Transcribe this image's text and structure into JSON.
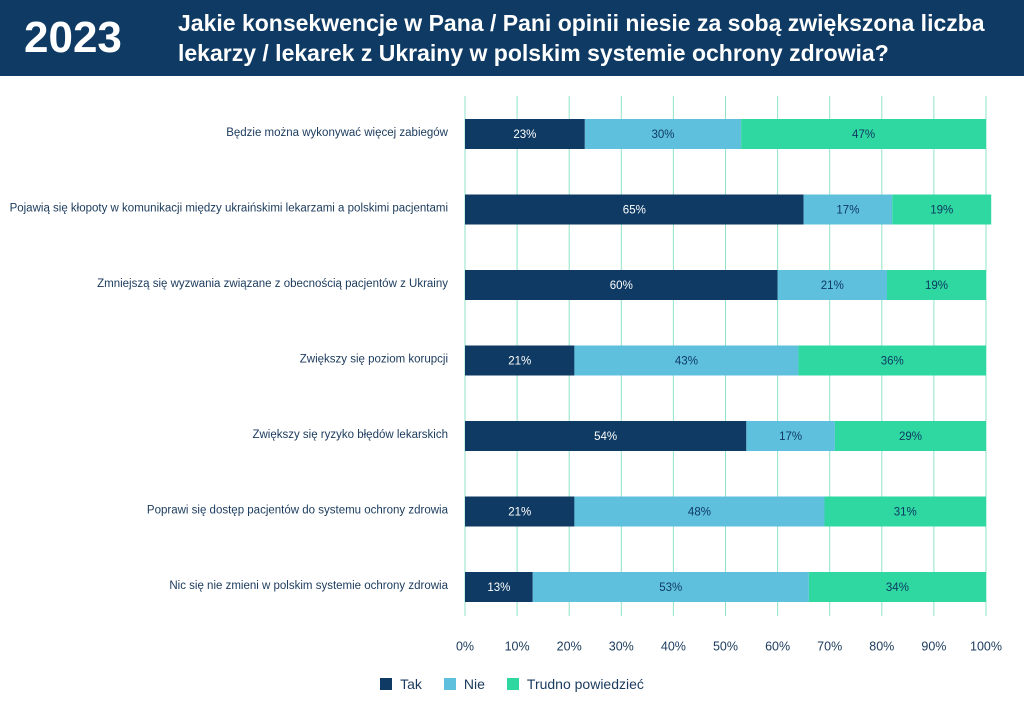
{
  "header": {
    "year": "2023",
    "title": "Jakie konsekwencje w Pana / Pani opinii niesie za sobą zwiększona liczba lekarzy / lekarek z Ukrainy w polskim systemie ochrony zdrowia?"
  },
  "colors": {
    "tak": "#0e3a63",
    "nie": "#5fc0de",
    "trudno": "#2ed8a0",
    "grid": "#8fe3c8"
  },
  "chart_data": {
    "type": "bar",
    "orientation": "horizontal",
    "stacked": true,
    "categories": [
      "Będzie można wykonywać więcej zabiegów",
      "Pojawią się kłopoty w komunikacji między ukraińskimi lekarzami a polskimi pacjentami",
      "Zmniejszą się wyzwania związane z obecnością pacjentów z Ukrainy",
      "Zwiększy się poziom korupcji",
      "Zwiększy się ryzyko błędów lekarskich",
      "Poprawi się dostęp pacjentów do systemu ochrony zdrowia",
      "Nic się nie zmieni w polskim systemie ochrony zdrowia"
    ],
    "series": [
      {
        "name": "Tak",
        "color": "#0e3a63",
        "label_color": "#ffffff",
        "values": [
          23,
          65,
          60,
          21,
          54,
          21,
          13
        ]
      },
      {
        "name": "Nie",
        "color": "#5fc0de",
        "label_color": "#0e3a63",
        "values": [
          30,
          17,
          21,
          43,
          17,
          48,
          53
        ]
      },
      {
        "name": "Trudno powiedzieć",
        "color": "#2ed8a0",
        "label_color": "#0e3a63",
        "values": [
          47,
          19,
          19,
          36,
          29,
          31,
          34
        ]
      }
    ],
    "xlim": [
      0,
      100
    ],
    "xticks": [
      "0%",
      "10%",
      "20%",
      "30%",
      "40%",
      "50%",
      "60%",
      "70%",
      "80%",
      "90%",
      "100%"
    ],
    "grid": true,
    "legend": "bottom-center"
  }
}
